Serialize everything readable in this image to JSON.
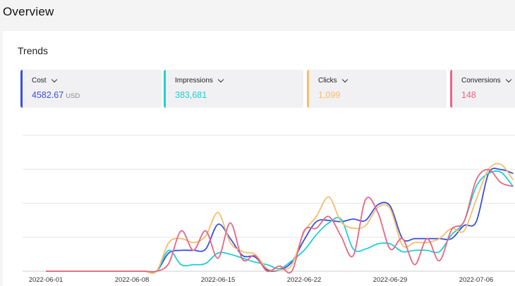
{
  "page": {
    "title": "Overview"
  },
  "panel": {
    "title": "Trends"
  },
  "cards": [
    {
      "label": "Cost",
      "value": "4582.67",
      "unit": "USD",
      "color": "#3b4fe0"
    },
    {
      "label": "Impressions",
      "value": "383,681",
      "unit": "",
      "color": "#1fcfd3"
    },
    {
      "label": "Clicks",
      "value": "1,099",
      "unit": "",
      "color": "#f4be6e"
    },
    {
      "label": "Conversions",
      "value": "148",
      "unit": "",
      "color": "#e86685"
    }
  ],
  "chart_data": {
    "type": "line",
    "x_labels": [
      "2022-06-01",
      "2022-06-08",
      "2022-06-15",
      "2022-06-22",
      "2022-06-29",
      "2022-07-06"
    ],
    "x_start": "2022-06-01",
    "x_end": "2022-07-11",
    "y_range": [
      0,
      100
    ],
    "grid": true,
    "legend": "none",
    "series": [
      {
        "color": "#3b4fe0",
        "points": [
          [
            0,
            0
          ],
          [
            1,
            0
          ],
          [
            2,
            0
          ],
          [
            3,
            0
          ],
          [
            4,
            0
          ],
          [
            5,
            0
          ],
          [
            6,
            0
          ],
          [
            7,
            0
          ],
          [
            8,
            0
          ],
          [
            9,
            0
          ],
          [
            10,
            14
          ],
          [
            11,
            16
          ],
          [
            12,
            16
          ],
          [
            13,
            17
          ],
          [
            14,
            36
          ],
          [
            15,
            25
          ],
          [
            16,
            12
          ],
          [
            17,
            11
          ],
          [
            18,
            1
          ],
          [
            19,
            1
          ],
          [
            20,
            7
          ],
          [
            21,
            24
          ],
          [
            22,
            38
          ],
          [
            23,
            39
          ],
          [
            24,
            38
          ],
          [
            25,
            40
          ],
          [
            26,
            39
          ],
          [
            27,
            51
          ],
          [
            28,
            50
          ],
          [
            29,
            25
          ],
          [
            30,
            25
          ],
          [
            31,
            25
          ],
          [
            32,
            25
          ],
          [
            33,
            25
          ],
          [
            34,
            35
          ],
          [
            35,
            38
          ],
          [
            36,
            75
          ],
          [
            37,
            78
          ],
          [
            38,
            75
          ]
        ]
      },
      {
        "color": "#1fcfd3",
        "points": [
          [
            0,
            0
          ],
          [
            1,
            0
          ],
          [
            2,
            0
          ],
          [
            3,
            0
          ],
          [
            4,
            0
          ],
          [
            5,
            0
          ],
          [
            6,
            0
          ],
          [
            7,
            0
          ],
          [
            8,
            0
          ],
          [
            9,
            0
          ],
          [
            10,
            16
          ],
          [
            11,
            5
          ],
          [
            12,
            5
          ],
          [
            13,
            6
          ],
          [
            14,
            14
          ],
          [
            15,
            13
          ],
          [
            16,
            10
          ],
          [
            17,
            7
          ],
          [
            18,
            5
          ],
          [
            19,
            2
          ],
          [
            20,
            8
          ],
          [
            21,
            16
          ],
          [
            22,
            28
          ],
          [
            23,
            37
          ],
          [
            24,
            40
          ],
          [
            25,
            17
          ],
          [
            26,
            17
          ],
          [
            27,
            21
          ],
          [
            28,
            21
          ],
          [
            29,
            15
          ],
          [
            30,
            16
          ],
          [
            31,
            16
          ],
          [
            32,
            15
          ],
          [
            33,
            28
          ],
          [
            34,
            38
          ],
          [
            35,
            65
          ],
          [
            36,
            75
          ],
          [
            37,
            76
          ],
          [
            38,
            65
          ]
        ]
      },
      {
        "color": "#f4be6e",
        "points": [
          [
            0,
            0
          ],
          [
            1,
            0
          ],
          [
            2,
            0
          ],
          [
            3,
            0
          ],
          [
            4,
            0
          ],
          [
            5,
            0
          ],
          [
            6,
            0
          ],
          [
            7,
            0
          ],
          [
            8,
            0
          ],
          [
            9,
            0
          ],
          [
            10,
            22
          ],
          [
            11,
            25
          ],
          [
            12,
            22
          ],
          [
            13,
            27
          ],
          [
            14,
            45
          ],
          [
            15,
            22
          ],
          [
            16,
            15
          ],
          [
            17,
            13
          ],
          [
            18,
            2
          ],
          [
            19,
            1
          ],
          [
            20,
            5
          ],
          [
            21,
            30
          ],
          [
            22,
            42
          ],
          [
            23,
            57
          ],
          [
            24,
            38
          ],
          [
            25,
            33
          ],
          [
            26,
            35
          ],
          [
            27,
            49
          ],
          [
            28,
            48
          ],
          [
            29,
            20
          ],
          [
            30,
            22
          ],
          [
            31,
            22
          ],
          [
            32,
            25
          ],
          [
            33,
            33
          ],
          [
            34,
            31
          ],
          [
            35,
            55
          ],
          [
            36,
            78
          ],
          [
            37,
            82
          ],
          [
            38,
            70
          ]
        ]
      },
      {
        "color": "#e86685",
        "points": [
          [
            0,
            0
          ],
          [
            1,
            0
          ],
          [
            2,
            0
          ],
          [
            3,
            0
          ],
          [
            4,
            0
          ],
          [
            5,
            0
          ],
          [
            6,
            0
          ],
          [
            7,
            0
          ],
          [
            8,
            0
          ],
          [
            9,
            0
          ],
          [
            10,
            6
          ],
          [
            11,
            31
          ],
          [
            12,
            16
          ],
          [
            13,
            31
          ],
          [
            14,
            10
          ],
          [
            15,
            37
          ],
          [
            16,
            9
          ],
          [
            17,
            12
          ],
          [
            18,
            0
          ],
          [
            19,
            4
          ],
          [
            20,
            0
          ],
          [
            21,
            31
          ],
          [
            22,
            33
          ],
          [
            23,
            42
          ],
          [
            24,
            27
          ],
          [
            25,
            12
          ],
          [
            26,
            55
          ],
          [
            27,
            45
          ],
          [
            28,
            17
          ],
          [
            29,
            25
          ],
          [
            30,
            5
          ],
          [
            31,
            25
          ],
          [
            32,
            8
          ],
          [
            33,
            32
          ],
          [
            34,
            38
          ],
          [
            35,
            70
          ],
          [
            36,
            78
          ],
          [
            37,
            68
          ],
          [
            38,
            65
          ]
        ]
      }
    ]
  }
}
